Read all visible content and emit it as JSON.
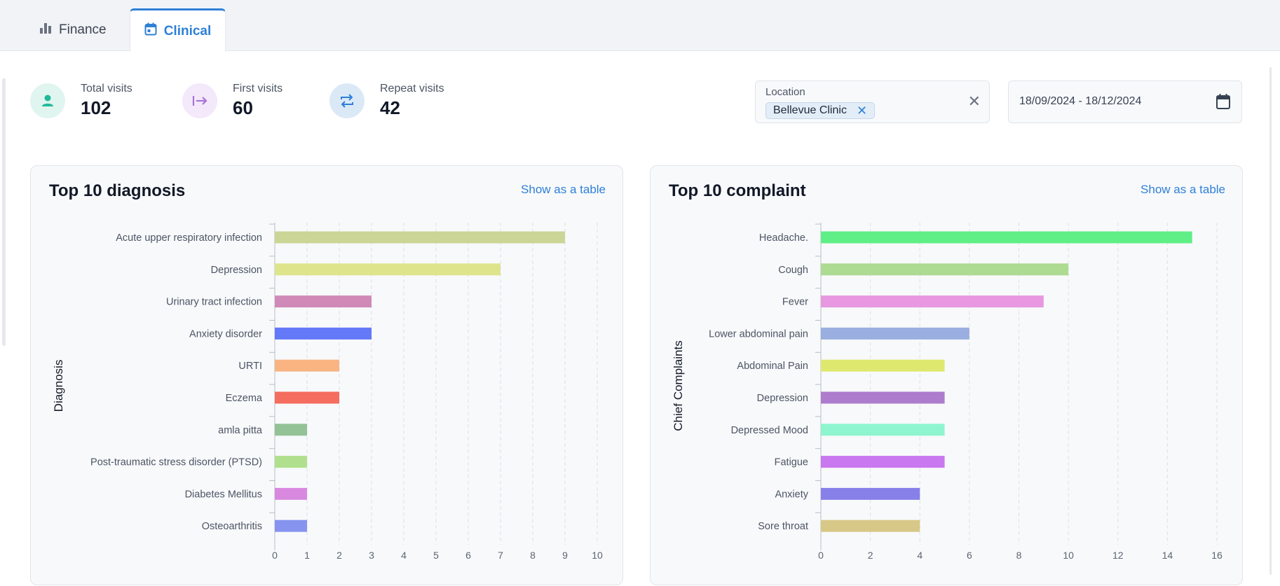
{
  "tabs": [
    {
      "label": "Finance",
      "icon": "bar-chart-icon"
    },
    {
      "label": "Clinical",
      "icon": "calendar-icon",
      "active": true
    }
  ],
  "stats": [
    {
      "label": "Total visits",
      "value": "102",
      "icon": "person-icon",
      "color": "#20b99a",
      "bg": "#e0f5ef"
    },
    {
      "label": "First visits",
      "value": "60",
      "icon": "arrow-right-bar-icon",
      "color": "#a874d6",
      "bg": "#f3e9fb"
    },
    {
      "label": "Repeat visits",
      "value": "42",
      "icon": "repeat-icon",
      "color": "#2f80d6",
      "bg": "#dbe9f7"
    }
  ],
  "filters": {
    "location_label": "Location",
    "location_chip": "Bellevue Clinic",
    "date_range": "18/09/2024 - 18/12/2024"
  },
  "chart_data": [
    {
      "type": "bar",
      "orientation": "horizontal",
      "title": "Top 10 diagnosis",
      "link": "Show as a table",
      "ylabel": "Diagnosis",
      "xlim": [
        0,
        10
      ],
      "xticks": [
        "0",
        "1",
        "2",
        "3",
        "4",
        "5",
        "6",
        "7",
        "8",
        "9",
        "10"
      ],
      "categories": [
        "Acute upper respiratory infection",
        "Depression",
        "Urinary tract infection",
        "Anxiety disorder",
        "URTI",
        "Eczema",
        "amla pitta",
        "Post-traumatic stress disorder (PTSD)",
        "Diabetes Mellitus",
        "Osteoarthritis"
      ],
      "values": [
        9,
        7,
        3,
        3,
        2,
        2,
        1,
        1,
        1,
        1
      ],
      "colors": [
        "#cbd595",
        "#dee48b",
        "#d08ab8",
        "#6479f7",
        "#f9b482",
        "#f46d5e",
        "#93c296",
        "#b0e08d",
        "#d889df",
        "#8693ef"
      ],
      "grid": true
    },
    {
      "type": "bar",
      "orientation": "horizontal",
      "title": "Top 10 complaint",
      "link": "Show as a table",
      "ylabel": "Chief Complaints",
      "xlim": [
        0,
        16
      ],
      "xticks": [
        "0",
        "2",
        "4",
        "6",
        "8",
        "10",
        "12",
        "14",
        "16"
      ],
      "categories": [
        "Headache.",
        "Cough",
        "Fever",
        "Lower abdominal pain",
        "Abdominal  Pain",
        "Depression",
        "Depressed Mood",
        "Fatigue",
        "Anxiety",
        "Sore throat"
      ],
      "values": [
        15,
        10,
        9,
        6,
        5,
        5,
        5,
        5,
        4,
        4
      ],
      "colors": [
        "#5fef86",
        "#acdb91",
        "#e898e0",
        "#9aaedf",
        "#dfe86e",
        "#ae7ccc",
        "#8ef5cf",
        "#ca78ef",
        "#8780e8",
        "#d8c887"
      ],
      "grid": true
    }
  ]
}
